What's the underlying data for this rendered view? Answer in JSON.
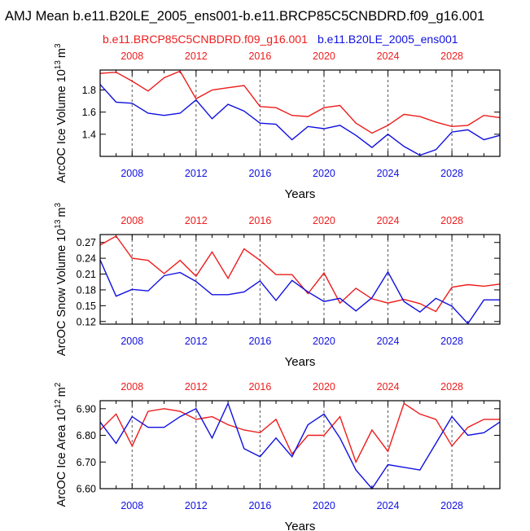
{
  "figure": {
    "title": "AMJ Mean b.e11.B20LE_2005_ens001-b.e11.BRCP85C5CNBDRD.f09_g16.001",
    "legend_red": "b.e11.BRCP85C5CNBDRD.f09_g16.001",
    "legend_blue": "b.e11.B20LE_2005_ens001"
  },
  "colors": {
    "red": "#ee1c1c",
    "blue": "#1010e0",
    "axis": "#000000",
    "grid": "#555555"
  },
  "chart_data": [
    {
      "type": "line",
      "name": "ice-volume",
      "ylabel": "ArcOC Ice Volume 10",
      "ylabel_exp": "13",
      "ylabel_unit": "m",
      "ylabel_unit_exp": "3",
      "xlabel": "Years",
      "xlim": [
        2006,
        2031
      ],
      "ylim": [
        1.2,
        1.98
      ],
      "yticks": [
        1.4,
        1.6,
        1.8
      ],
      "ytick_labels": [
        "1.4",
        "1.6",
        "1.8"
      ],
      "xticks": [
        2008,
        2012,
        2016,
        2020,
        2024,
        2028
      ],
      "top_labels": [
        "2008",
        "2012",
        "2016",
        "2020",
        "2024",
        "2028"
      ],
      "bottom_labels": [
        "2008",
        "2012",
        "2016",
        "2020",
        "2024",
        "2028"
      ],
      "x": [
        2006,
        2007,
        2008,
        2009,
        2010,
        2011,
        2012,
        2013,
        2014,
        2015,
        2016,
        2017,
        2018,
        2019,
        2020,
        2021,
        2022,
        2023,
        2024,
        2025,
        2026,
        2027,
        2028,
        2029,
        2030,
        2031
      ],
      "series": [
        {
          "name": "b.e11.BRCP85C5CNBDRD.f09_g16.001",
          "color": "red",
          "values": [
            1.95,
            1.96,
            1.88,
            1.79,
            1.91,
            1.97,
            1.72,
            1.8,
            1.82,
            1.84,
            1.65,
            1.64,
            1.57,
            1.56,
            1.64,
            1.66,
            1.5,
            1.41,
            1.48,
            1.58,
            1.56,
            1.51,
            1.47,
            1.48,
            1.57,
            1.55
          ]
        },
        {
          "name": "b.e11.B20LE_2005_ens001",
          "color": "blue",
          "values": [
            1.85,
            1.69,
            1.68,
            1.59,
            1.57,
            1.59,
            1.71,
            1.54,
            1.67,
            1.61,
            1.5,
            1.49,
            1.35,
            1.47,
            1.45,
            1.48,
            1.39,
            1.28,
            1.4,
            1.29,
            1.21,
            1.26,
            1.42,
            1.44,
            1.35,
            1.39
          ]
        }
      ]
    },
    {
      "type": "line",
      "name": "snow-volume",
      "ylabel": "ArcOC Snow Volume 10",
      "ylabel_exp": "13",
      "ylabel_unit": "m",
      "ylabel_unit_exp": "3",
      "xlabel": "Years",
      "xlim": [
        2006,
        2031
      ],
      "ylim": [
        0.115,
        0.285
      ],
      "yticks": [
        0.12,
        0.15,
        0.18,
        0.21,
        0.24,
        0.27
      ],
      "ytick_labels": [
        "0.12",
        "0.15",
        "0.18",
        "0.21",
        "0.24",
        "0.27"
      ],
      "xticks": [
        2008,
        2012,
        2016,
        2020,
        2024,
        2028
      ],
      "top_labels": [
        "2008",
        "2012",
        "2016",
        "2020",
        "2024",
        "2028"
      ],
      "bottom_labels": [
        "2008",
        "2012",
        "2016",
        "2020",
        "2024",
        "2028"
      ],
      "x": [
        2006,
        2007,
        2008,
        2009,
        2010,
        2011,
        2012,
        2013,
        2014,
        2015,
        2016,
        2017,
        2018,
        2019,
        2020,
        2021,
        2022,
        2023,
        2024,
        2025,
        2026,
        2027,
        2028,
        2029,
        2030,
        2031
      ],
      "series": [
        {
          "name": "b.e11.BRCP85C5CNBDRD.f09_g16.001",
          "color": "red",
          "values": [
            0.265,
            0.282,
            0.24,
            0.236,
            0.211,
            0.236,
            0.206,
            0.252,
            0.202,
            0.258,
            0.236,
            0.209,
            0.209,
            0.173,
            0.212,
            0.155,
            0.183,
            0.163,
            0.155,
            0.162,
            0.154,
            0.139,
            0.185,
            0.19,
            0.187,
            0.191
          ]
        },
        {
          "name": "b.e11.B20LE_2005_ens001",
          "color": "blue",
          "values": [
            0.237,
            0.168,
            0.181,
            0.178,
            0.207,
            0.213,
            0.196,
            0.171,
            0.171,
            0.176,
            0.197,
            0.16,
            0.198,
            0.176,
            0.158,
            0.164,
            0.14,
            0.165,
            0.214,
            0.158,
            0.138,
            0.164,
            0.149,
            0.116,
            0.161,
            0.161
          ]
        }
      ]
    },
    {
      "type": "line",
      "name": "ice-area",
      "ylabel": "ArcOC Ice Area 10",
      "ylabel_exp": "12",
      "ylabel_unit": "m",
      "ylabel_unit_exp": "2",
      "xlabel": "Years",
      "xlim": [
        2006,
        2031
      ],
      "ylim": [
        6.6,
        6.93
      ],
      "yticks": [
        6.6,
        6.7,
        6.8,
        6.9
      ],
      "ytick_labels": [
        "6.60",
        "6.70",
        "6.80",
        "6.90"
      ],
      "xticks": [
        2008,
        2012,
        2016,
        2020,
        2024,
        2028
      ],
      "top_labels": [
        "2008",
        "2012",
        "2016",
        "2020",
        "2024",
        "2028"
      ],
      "bottom_labels": [
        "2008",
        "2012",
        "2016",
        "2020",
        "2024",
        "2028"
      ],
      "x": [
        2006,
        2007,
        2008,
        2009,
        2010,
        2011,
        2012,
        2013,
        2014,
        2015,
        2016,
        2017,
        2018,
        2019,
        2020,
        2021,
        2022,
        2023,
        2024,
        2025,
        2026,
        2027,
        2028,
        2029,
        2030,
        2031
      ],
      "series": [
        {
          "name": "b.e11.BRCP85C5CNBDRD.f09_g16.001",
          "color": "red",
          "values": [
            6.82,
            6.88,
            6.76,
            6.89,
            6.9,
            6.89,
            6.86,
            6.87,
            6.84,
            6.82,
            6.81,
            6.86,
            6.73,
            6.8,
            6.8,
            6.87,
            6.7,
            6.82,
            6.74,
            6.92,
            6.88,
            6.86,
            6.76,
            6.83,
            6.86,
            6.86
          ]
        },
        {
          "name": "b.e11.B20LE_2005_ens001",
          "color": "blue",
          "values": [
            6.85,
            6.77,
            6.87,
            6.83,
            6.83,
            6.87,
            6.9,
            6.79,
            6.92,
            6.75,
            6.72,
            6.79,
            6.72,
            6.84,
            6.88,
            6.79,
            6.67,
            6.6,
            6.69,
            6.68,
            6.67,
            6.77,
            6.87,
            6.8,
            6.81,
            6.85
          ]
        }
      ]
    }
  ]
}
